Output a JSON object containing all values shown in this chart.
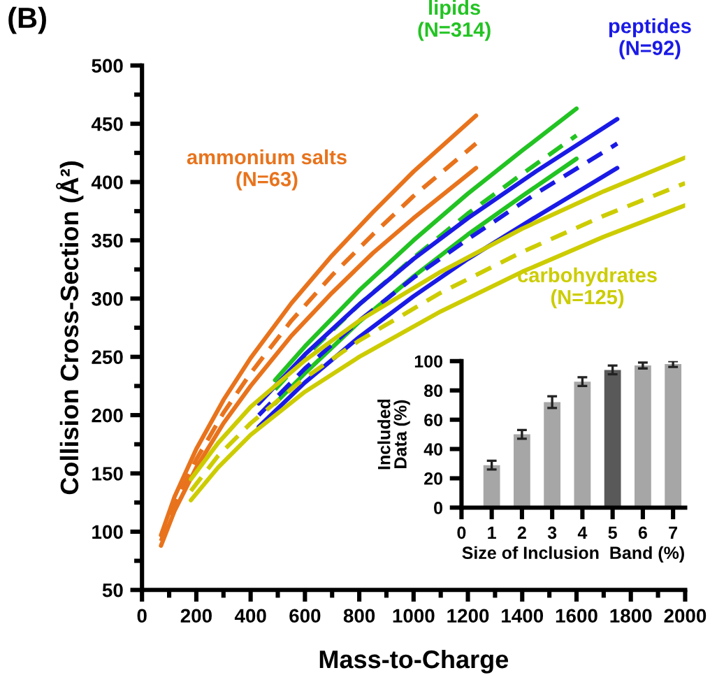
{
  "chart_data": [
    {
      "type": "line",
      "title": "(B)",
      "xlabel": "Mass-to-Charge",
      "ylabel": "Collision Cross-Section (Å²)",
      "xlim": [
        0,
        2000
      ],
      "xticks": [
        0,
        200,
        400,
        600,
        800,
        1000,
        1200,
        1400,
        1600,
        1800,
        2000
      ],
      "ylim": [
        50,
        500
      ],
      "yticks": [
        50,
        100,
        150,
        200,
        250,
        300,
        350,
        400,
        450,
        500
      ],
      "grid": false,
      "legend": false,
      "marker": "none",
      "series": [
        {
          "color": "#e8731c",
          "line_style": "solid",
          "x": [
            70,
            120,
            200,
            300,
            400,
            550,
            700,
            850,
            1000,
            1230
          ],
          "values": [
            97,
            130,
            171,
            213,
            249,
            296,
            337,
            374,
            409,
            457
          ]
        },
        {
          "name": "ammonium salts\n(N=63)",
          "color": "#e8731c",
          "line_style": "dashed",
          "x": [
            70,
            120,
            200,
            300,
            400,
            550,
            700,
            850,
            1000,
            1230
          ],
          "values": [
            92,
            123,
            162,
            202,
            236,
            281,
            320,
            355,
            388,
            433
          ]
        },
        {
          "color": "#e8731c",
          "line_style": "solid",
          "x": [
            70,
            120,
            200,
            300,
            400,
            550,
            700,
            850,
            1000,
            1230
          ],
          "values": [
            88,
            118,
            155,
            193,
            225,
            268,
            305,
            339,
            369,
            412
          ]
        },
        {
          "color": "#22c322",
          "line_style": "solid",
          "x": [
            490,
            600,
            800,
            1000,
            1200,
            1400,
            1600
          ],
          "values": [
            230,
            259,
            307,
            350,
            390,
            427,
            463
          ]
        },
        {
          "name": "lipids\n(N=314)",
          "color": "#22c322",
          "line_style": "dashed",
          "x": [
            490,
            600,
            800,
            1000,
            1200,
            1400,
            1600
          ],
          "values": [
            222,
            250,
            295,
            335,
            373,
            407,
            440
          ]
        },
        {
          "color": "#22c322",
          "line_style": "solid",
          "x": [
            490,
            600,
            800,
            1000,
            1200,
            1400,
            1600
          ],
          "values": [
            210,
            236,
            280,
            319,
            355,
            388,
            420
          ]
        },
        {
          "color": "#1a1ae6",
          "line_style": "solid",
          "x": [
            430,
            600,
            800,
            1000,
            1200,
            1450,
            1750
          ],
          "values": [
            210,
            252,
            295,
            334,
            369,
            409,
            454
          ]
        },
        {
          "name": "peptides\n(N=92)",
          "color": "#1a1ae6",
          "line_style": "dashed",
          "x": [
            430,
            600,
            800,
            1000,
            1200,
            1450,
            1750
          ],
          "values": [
            200,
            240,
            281,
            318,
            351,
            390,
            433
          ]
        },
        {
          "color": "#1a1ae6",
          "line_style": "solid",
          "x": [
            430,
            600,
            800,
            1000,
            1200,
            1450,
            1750
          ],
          "values": [
            190,
            228,
            267,
            302,
            334,
            370,
            412
          ]
        },
        {
          "color": "#cccc00",
          "line_style": "solid",
          "x": [
            180,
            280,
            400,
            600,
            800,
            1100,
            1400,
            1700,
            2000
          ],
          "values": [
            145,
            176,
            207,
            247,
            281,
            323,
            360,
            392,
            421
          ]
        },
        {
          "name": "carbohydrates\n(N=125)",
          "color": "#cccc00",
          "line_style": "dashed",
          "x": [
            180,
            280,
            400,
            600,
            800,
            1100,
            1400,
            1700,
            2000
          ],
          "values": [
            135,
            165,
            193,
            232,
            264,
            305,
            340,
            371,
            399
          ]
        },
        {
          "color": "#cccc00",
          "line_style": "solid",
          "x": [
            180,
            280,
            400,
            600,
            800,
            1100,
            1400,
            1700,
            2000
          ],
          "values": [
            127,
            155,
            183,
            220,
            250,
            289,
            323,
            353,
            380
          ]
        }
      ]
    },
    {
      "type": "bar",
      "xlabel": "Size of Inclusion  Band (%)",
      "ylabel": "Included\nData (%)",
      "x": [
        1,
        2,
        3,
        4,
        5,
        6,
        7
      ],
      "values": [
        29,
        50,
        72,
        86,
        94,
        97,
        98
      ],
      "errors": [
        3,
        3,
        4,
        3,
        3,
        2,
        2
      ],
      "colors": [
        "#a6a6a6",
        "#a6a6a6",
        "#a6a6a6",
        "#a6a6a6",
        "#595959",
        "#a6a6a6",
        "#a6a6a6"
      ],
      "xlim": [
        0,
        7.4
      ],
      "xticks": [
        0,
        1,
        2,
        3,
        4,
        5,
        6,
        7
      ],
      "ylim": [
        0,
        100
      ],
      "yticks": [
        0,
        20,
        40,
        60,
        80,
        100
      ],
      "grid": false
    }
  ]
}
